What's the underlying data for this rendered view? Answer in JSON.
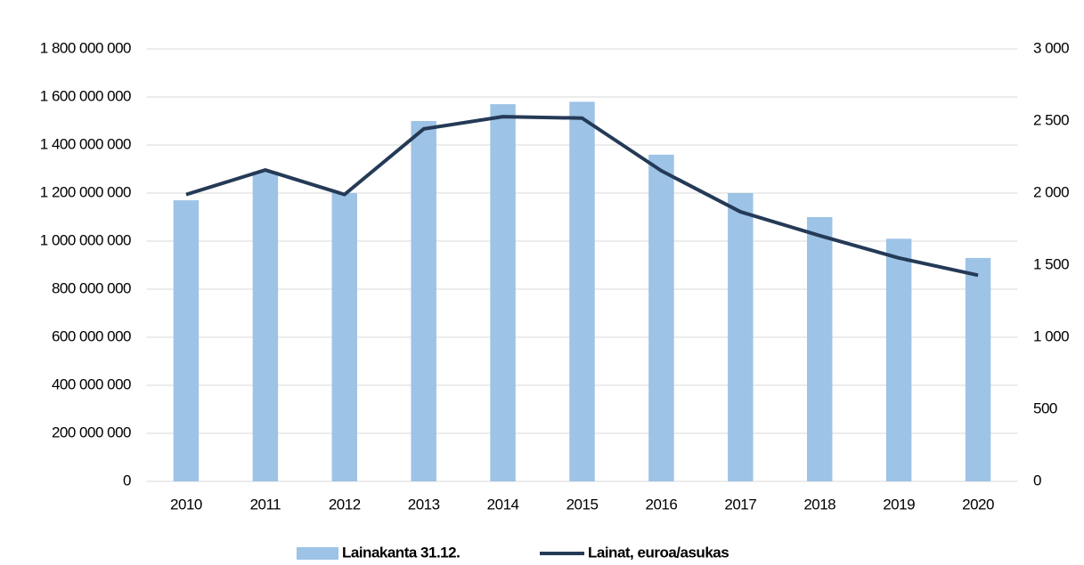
{
  "chart_data": {
    "type": "bar_line",
    "categories": [
      "2010",
      "2011",
      "2012",
      "2013",
      "2014",
      "2015",
      "2016",
      "2017",
      "2018",
      "2019",
      "2020"
    ],
    "series": [
      {
        "name": "Lainakanta 31.12.",
        "type": "bar",
        "color": "#9dc3e6",
        "axis": "y",
        "values": [
          1170000000,
          1290000000,
          1200000000,
          1500000000,
          1570000000,
          1580000000,
          1360000000,
          1200000000,
          1100000000,
          1010000000,
          930000000
        ]
      },
      {
        "name": "Lainat, euroa/asukas",
        "type": "line",
        "color": "#243a57",
        "axis": "y2",
        "values": [
          1990,
          2160,
          1990,
          2445,
          2530,
          2520,
          2155,
          1870,
          1705,
          1550,
          1430
        ]
      }
    ],
    "ylim": [
      0,
      1800000000
    ],
    "yticks": [
      0,
      {
        "value": 200000000,
        "label": "200 000 000"
      },
      {
        "value": 400000000,
        "label": "400 000 000"
      },
      {
        "value": 600000000,
        "label": "600 000 000"
      },
      {
        "value": 800000000,
        "label": "800 000 000"
      },
      {
        "value": 1000000000,
        "label": "1 000 000 000"
      },
      {
        "value": 1200000000,
        "label": "1 200 000 000"
      },
      {
        "value": 1400000000,
        "label": "1 400 000 000"
      },
      {
        "value": 1600000000,
        "label": "1 600 000 000"
      },
      {
        "value": 1800000000,
        "label": "1 800 000 000"
      }
    ],
    "y2lim": [
      0,
      3000
    ],
    "y2ticks": [
      0,
      500,
      {
        "value": 1000,
        "label": "1 000"
      },
      {
        "value": 1500,
        "label": "1 500"
      },
      {
        "value": 2000,
        "label": "2 000"
      },
      {
        "value": 2500,
        "label": "2 500"
      },
      {
        "value": 3000,
        "label": "3 000"
      }
    ],
    "grid": true,
    "legend": "bottom"
  }
}
